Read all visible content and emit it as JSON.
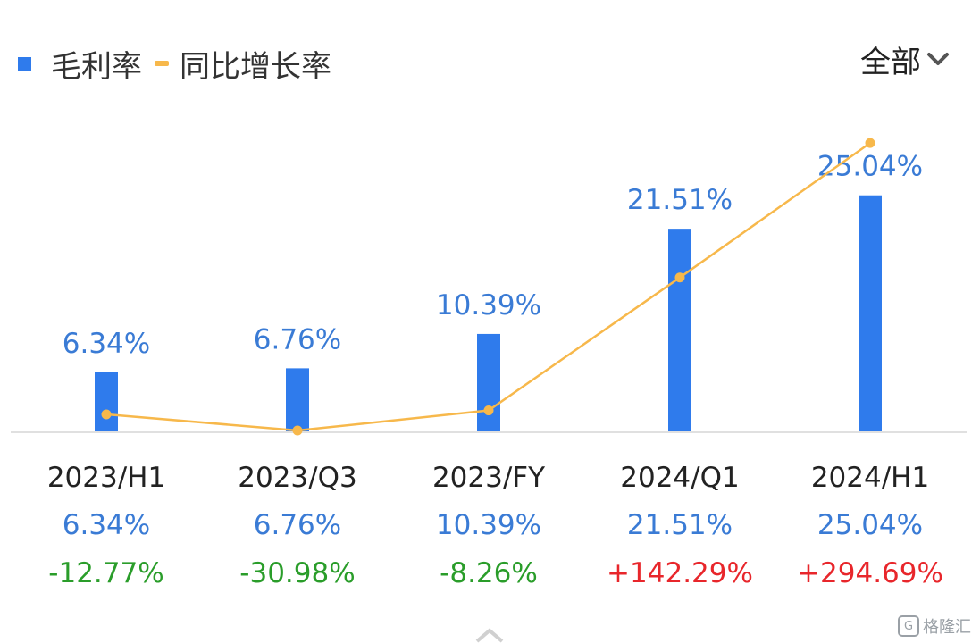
{
  "legend": {
    "bar_label": "毛利率",
    "line_label": "同比增长率"
  },
  "filter": {
    "label": "全部",
    "icon": "chevron-down-icon"
  },
  "colors": {
    "bar": "#2f7bec",
    "line": "#f7b84b",
    "bar_label": "#3a7bd5",
    "negative": "#2a9d2a",
    "positive": "#e8262b",
    "axis_text": "#222222",
    "baseline": "#e0e0e0"
  },
  "chart_data": {
    "type": "bar",
    "categories": [
      "2023/H1",
      "2023/Q3",
      "2023/FY",
      "2024/Q1",
      "2024/H1"
    ],
    "series": [
      {
        "name": "毛利率",
        "type": "bar",
        "values": [
          6.34,
          6.76,
          10.39,
          21.51,
          25.04
        ],
        "labels": [
          "6.34%",
          "6.76%",
          "10.39%",
          "21.51%",
          "25.04%"
        ]
      },
      {
        "name": "同比增长率",
        "type": "line",
        "values": [
          -12.77,
          -30.98,
          -8.26,
          142.29,
          294.69
        ],
        "labels": [
          "-12.77%",
          "-30.98%",
          "-8.26%",
          "+142.29%",
          "+294.69%"
        ]
      }
    ],
    "bar_ylim": [
      0,
      32
    ],
    "line_ylim": [
      -33,
      310
    ],
    "grid": false
  },
  "watermark": {
    "icon": "gelonghui-logo-icon",
    "text": "格隆汇"
  }
}
